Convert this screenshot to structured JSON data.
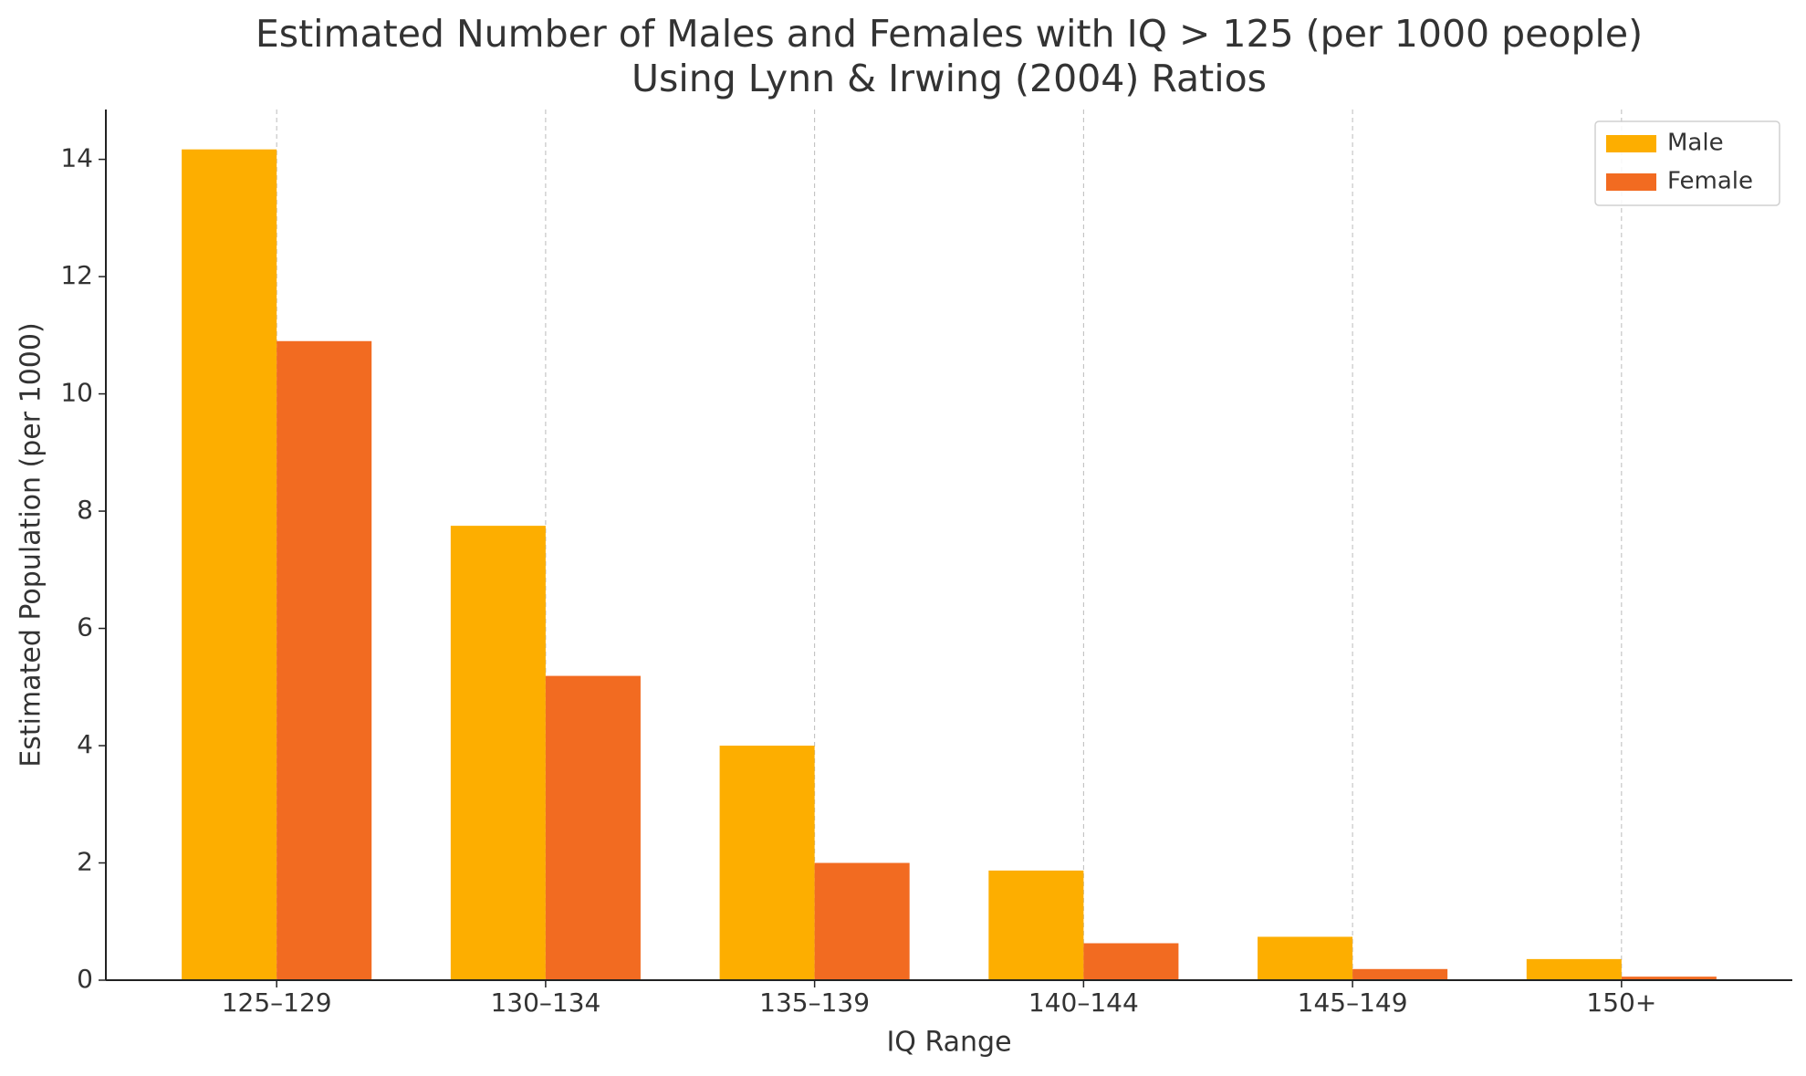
{
  "chart_data": {
    "type": "bar",
    "title": [
      "Estimated Number of Males and Females with IQ > 125 (per 1000 people)",
      "Using Lynn & Irwing (2004) Ratios"
    ],
    "x_label": "IQ Range",
    "y_label": "Estimated Population (per 1000)",
    "categories": [
      "125–129",
      "130–134",
      "135–139",
      "140–144",
      "145–149",
      "150+"
    ],
    "series": [
      {
        "name": "Male",
        "color": "#fdae00",
        "values": [
          14.17,
          7.75,
          4.0,
          1.87,
          0.74,
          0.36
        ]
      },
      {
        "name": "Female",
        "color": "#f26b21",
        "values": [
          10.9,
          5.19,
          2.0,
          0.63,
          0.19,
          0.06
        ]
      }
    ],
    "ylim": [
      0,
      14.85
    ],
    "yticks": [
      0,
      2,
      4,
      6,
      8,
      10,
      12,
      14
    ],
    "grid": "x",
    "legend": "upper right"
  }
}
